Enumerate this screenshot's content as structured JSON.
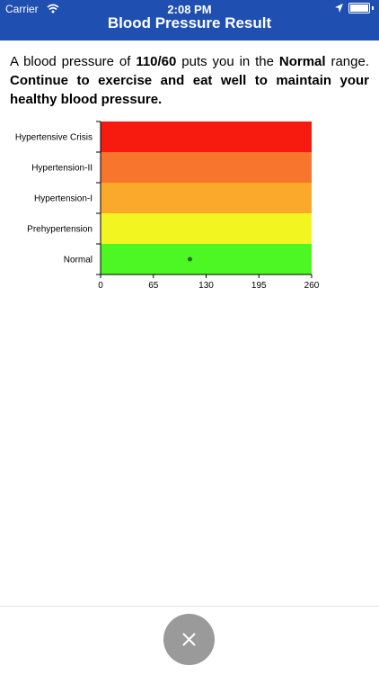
{
  "status": {
    "carrier": "Carrier",
    "time": "2:08 PM"
  },
  "header": {
    "title": "Blood Pressure Result"
  },
  "result": {
    "text_part1": "A blood pressure of ",
    "reading": "110/60",
    "text_part2": " puts you in the ",
    "category": "Normal",
    "text_part3": " range. ",
    "advice": "Continue to exercise and eat well to maintain your healthy blood pressure."
  },
  "chart_data": {
    "type": "scatter",
    "categories": [
      "Normal",
      "Prehypertension",
      "Hypertension-I",
      "Hypertension-II",
      "Hypertensive Crisis"
    ],
    "band_colors": [
      "#4cf724",
      "#f3f521",
      "#fba92b",
      "#f8752d",
      "#f61a0f"
    ],
    "xticks": [
      0,
      65,
      130,
      195,
      260
    ],
    "xlim": [
      0,
      260
    ],
    "point": {
      "x": 110,
      "category": "Normal"
    },
    "point_color": "#2a6b18"
  },
  "close_button": {
    "icon": "close-icon"
  }
}
